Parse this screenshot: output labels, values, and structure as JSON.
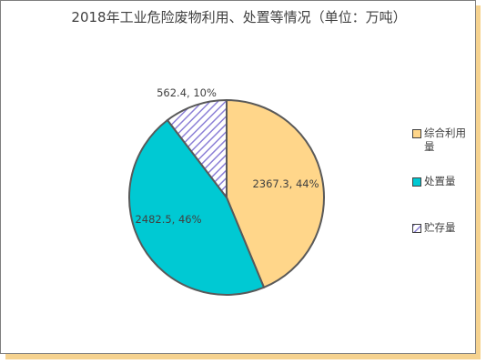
{
  "chart_data": {
    "type": "pie",
    "title": "2018年工业危险废物利用、处置等情况（单位：万吨）",
    "slices": [
      {
        "name": "综合利用量",
        "value": 2367.3,
        "percent": 44,
        "label": "2367.3, 44%",
        "color": "#ffd68a"
      },
      {
        "name": "处置量",
        "value": 2482.5,
        "percent": 46,
        "label": "2482.5, 46%",
        "color": "#00c9d3"
      },
      {
        "name": "贮存量",
        "value": 562.4,
        "percent": 10,
        "label": "562.4, 10%",
        "color": "#8b7fd6",
        "pattern": "diagonal-hatch"
      }
    ],
    "legend_position": "right",
    "frame_shadow_color": "#f5d28f"
  }
}
